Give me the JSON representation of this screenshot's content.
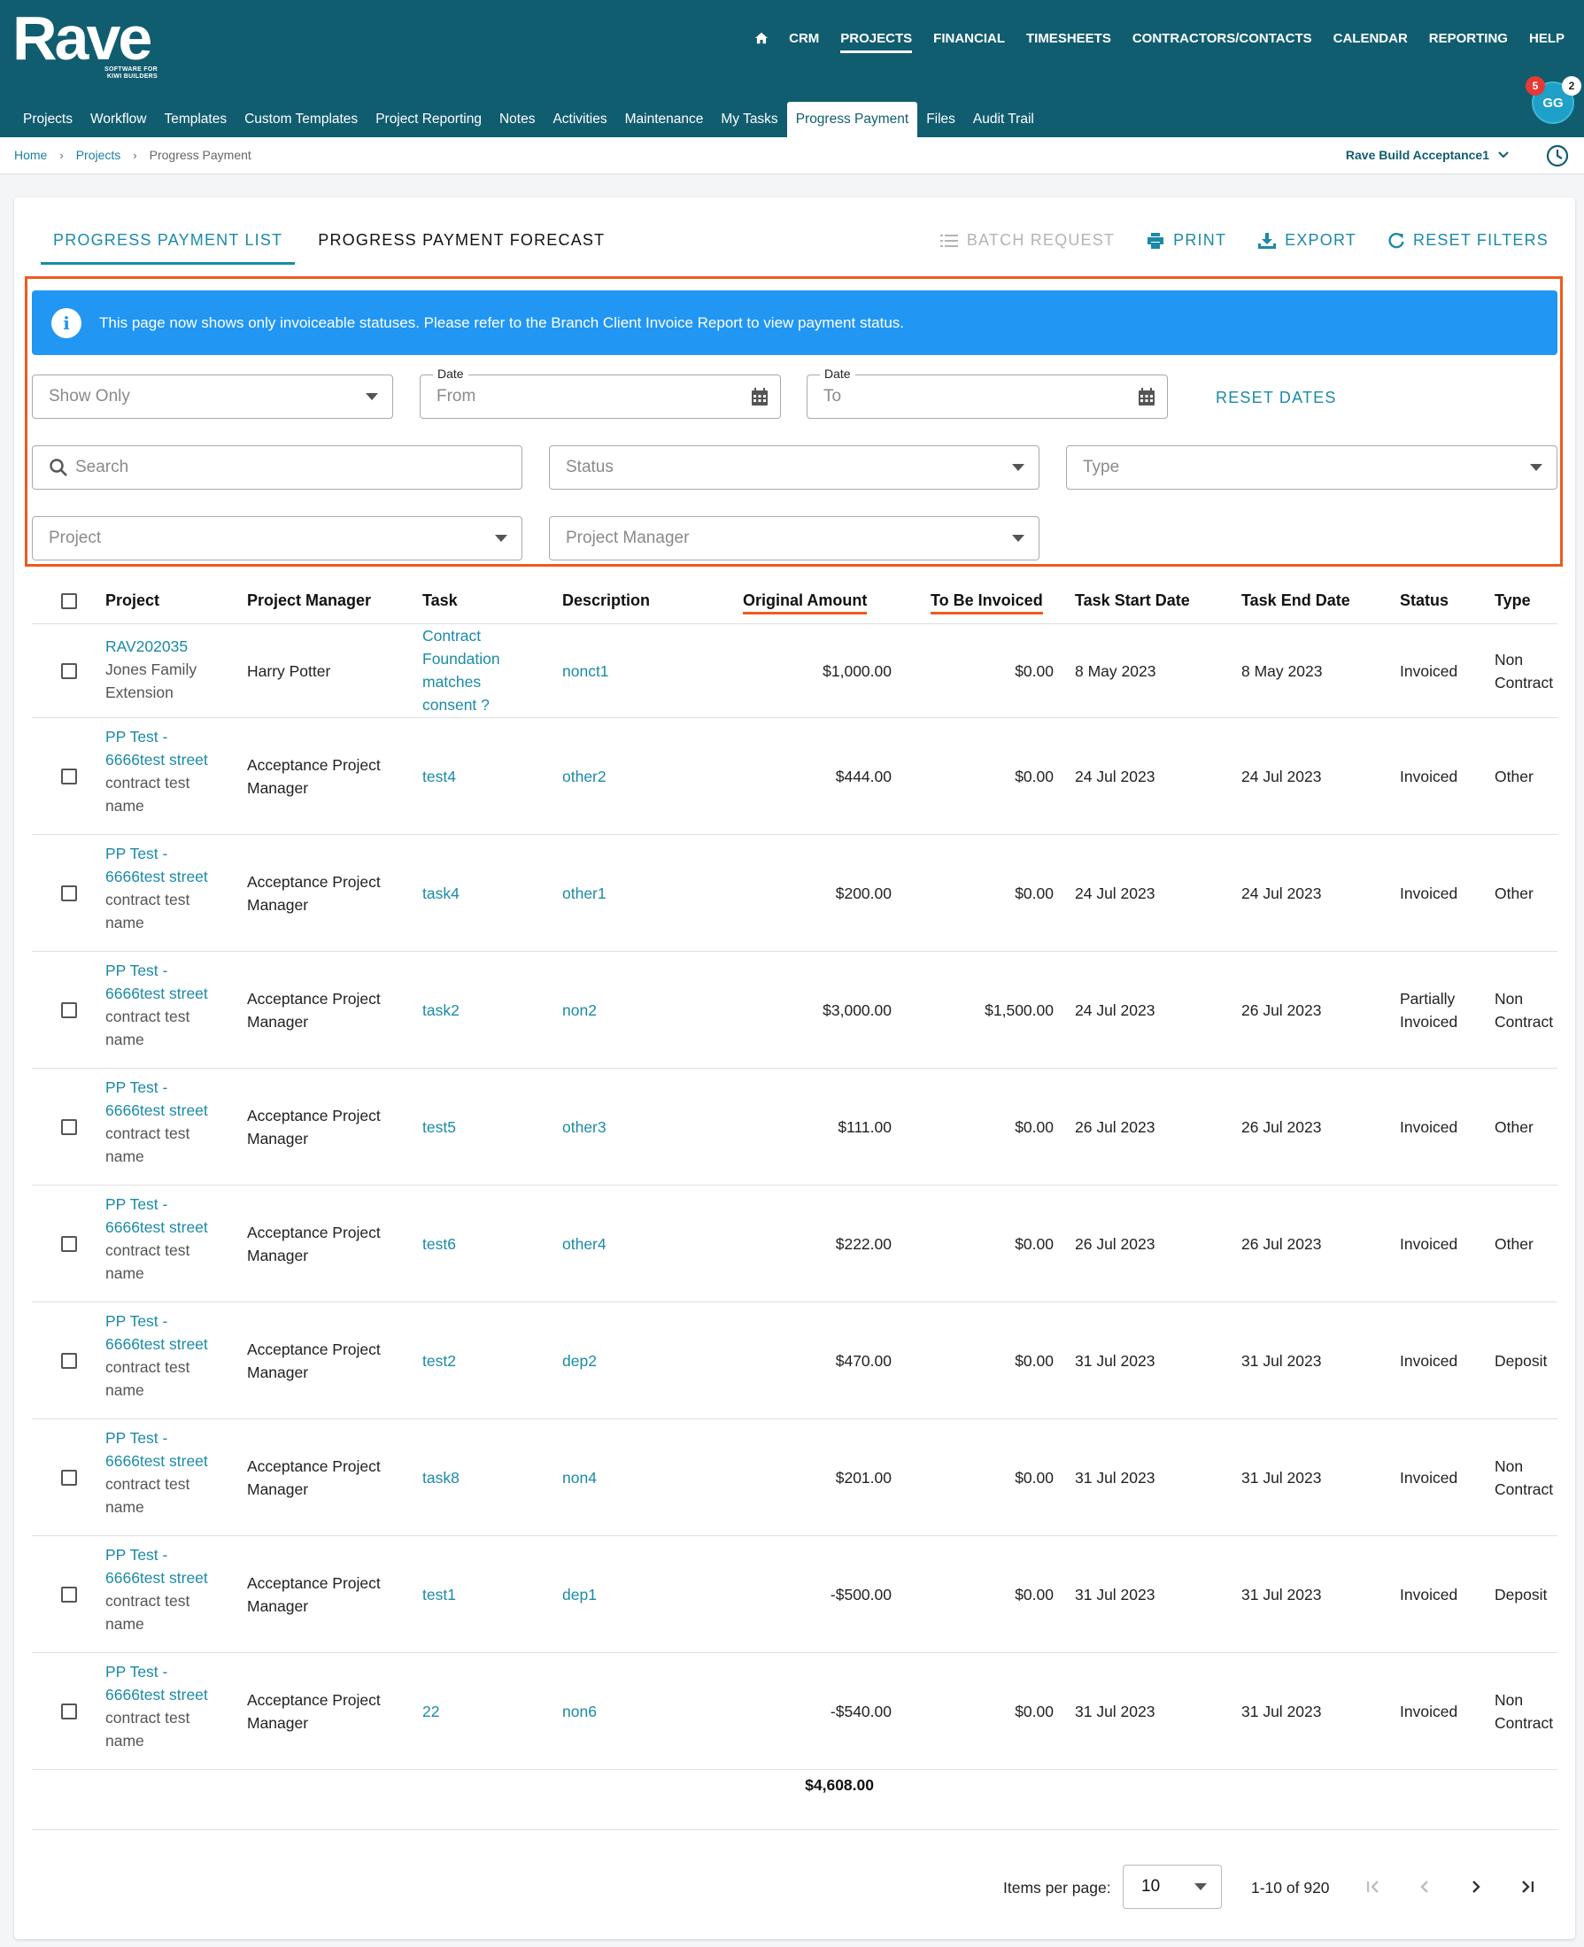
{
  "brand": {
    "name": "Rave",
    "tagline_line1": "SOFTWARE FOR",
    "tagline_line2": "KIWI BUILDERS"
  },
  "top_nav": [
    {
      "label": "CRM",
      "active": false
    },
    {
      "label": "PROJECTS",
      "active": true
    },
    {
      "label": "FINANCIAL",
      "active": false
    },
    {
      "label": "TIMESHEETS",
      "active": false
    },
    {
      "label": "CONTRACTORS/CONTACTS",
      "active": false
    },
    {
      "label": "CALENDAR",
      "active": false
    },
    {
      "label": "REPORTING",
      "active": false
    },
    {
      "label": "HELP",
      "active": false
    }
  ],
  "user": {
    "initials": "GG",
    "notifications": "5",
    "messages": "2"
  },
  "sub_nav": [
    {
      "label": "Projects"
    },
    {
      "label": "Workflow"
    },
    {
      "label": "Templates"
    },
    {
      "label": "Custom Templates"
    },
    {
      "label": "Project Reporting"
    },
    {
      "label": "Notes"
    },
    {
      "label": "Activities"
    },
    {
      "label": "Maintenance"
    },
    {
      "label": "My Tasks"
    },
    {
      "label": "Progress Payment",
      "active": true
    },
    {
      "label": "Files"
    },
    {
      "label": "Audit Trail"
    }
  ],
  "breadcrumb": {
    "home": "Home",
    "projects": "Projects",
    "current": "Progress Payment"
  },
  "branch": "Rave Build Acceptance1",
  "tabs": {
    "list": "PROGRESS PAYMENT LIST",
    "forecast": "PROGRESS PAYMENT FORECAST"
  },
  "actions": {
    "batch": "BATCH REQUEST",
    "print": "PRINT",
    "export": "EXPORT",
    "reset": "RESET FILTERS"
  },
  "info_message": "This page now shows only invoiceable statuses. Please refer to the Branch Client Invoice Report to view payment status.",
  "filters": {
    "show_only": "Show Only",
    "date_label": "Date",
    "from": "From",
    "to": "To",
    "reset_dates": "RESET DATES",
    "search": "Search",
    "status": "Status",
    "type": "Type",
    "project": "Project",
    "project_manager": "Project Manager"
  },
  "columns": {
    "project": "Project",
    "manager": "Project Manager",
    "task": "Task",
    "description": "Description",
    "original": "Original Amount",
    "to_invoice": "To Be Invoiced",
    "start": "Task Start Date",
    "end": "Task End Date",
    "status": "Status",
    "type": "Type"
  },
  "rows": [
    {
      "project_code": "RAV202035",
      "project_name": "Jones Family Extension",
      "manager": "Harry Potter",
      "task": "Contract Foundation matches consent ?",
      "description": "nonct1",
      "original": "$1,000.00",
      "to_invoice": "$0.00",
      "start": "8 May 2023",
      "end": "8 May 2023",
      "status": "Invoiced",
      "type": "Non Contract"
    },
    {
      "project_code": "PP Test - 6666test street",
      "project_name": "contract test name",
      "manager": "Acceptance Project Manager",
      "task": "test4",
      "description": "other2",
      "original": "$444.00",
      "to_invoice": "$0.00",
      "start": "24 Jul 2023",
      "end": "24 Jul 2023",
      "status": "Invoiced",
      "type": "Other"
    },
    {
      "project_code": "PP Test - 6666test street",
      "project_name": "contract test name",
      "manager": "Acceptance Project Manager",
      "task": "task4",
      "description": "other1",
      "original": "$200.00",
      "to_invoice": "$0.00",
      "start": "24 Jul 2023",
      "end": "24 Jul 2023",
      "status": "Invoiced",
      "type": "Other"
    },
    {
      "project_code": "PP Test - 6666test street",
      "project_name": "contract test name",
      "manager": "Acceptance Project Manager",
      "task": "task2",
      "description": "non2",
      "original": "$3,000.00",
      "to_invoice": "$1,500.00",
      "start": "24 Jul 2023",
      "end": "26 Jul 2023",
      "status": "Partially Invoiced",
      "type": "Non Contract"
    },
    {
      "project_code": "PP Test - 6666test street",
      "project_name": "contract test name",
      "manager": "Acceptance Project Manager",
      "task": "test5",
      "description": "other3",
      "original": "$111.00",
      "to_invoice": "$0.00",
      "start": "26 Jul 2023",
      "end": "26 Jul 2023",
      "status": "Invoiced",
      "type": "Other"
    },
    {
      "project_code": "PP Test - 6666test street",
      "project_name": "contract test name",
      "manager": "Acceptance Project Manager",
      "task": "test6",
      "description": "other4",
      "original": "$222.00",
      "to_invoice": "$0.00",
      "start": "26 Jul 2023",
      "end": "26 Jul 2023",
      "status": "Invoiced",
      "type": "Other"
    },
    {
      "project_code": "PP Test - 6666test street",
      "project_name": "contract test name",
      "manager": "Acceptance Project Manager",
      "task": "test2",
      "description": "dep2",
      "original": "$470.00",
      "to_invoice": "$0.00",
      "start": "31 Jul 2023",
      "end": "31 Jul 2023",
      "status": "Invoiced",
      "type": "Deposit"
    },
    {
      "project_code": "PP Test - 6666test street",
      "project_name": "contract test name",
      "manager": "Acceptance Project Manager",
      "task": "task8",
      "description": "non4",
      "original": "$201.00",
      "to_invoice": "$0.00",
      "start": "31 Jul 2023",
      "end": "31 Jul 2023",
      "status": "Invoiced",
      "type": "Non Contract"
    },
    {
      "project_code": "PP Test - 6666test street",
      "project_name": "contract test name",
      "manager": "Acceptance Project Manager",
      "task": "test1",
      "description": "dep1",
      "original": "-$500.00",
      "to_invoice": "$0.00",
      "start": "31 Jul 2023",
      "end": "31 Jul 2023",
      "status": "Invoiced",
      "type": "Deposit"
    },
    {
      "project_code": "PP Test - 6666test street",
      "project_name": "contract test name",
      "manager": "Acceptance Project Manager",
      "task": "22",
      "description": "non6",
      "original": "-$540.00",
      "to_invoice": "$0.00",
      "start": "31 Jul 2023",
      "end": "31 Jul 2023",
      "status": "Invoiced",
      "type": "Non Contract"
    }
  ],
  "total": "$4,608.00",
  "pagination": {
    "items_label": "Items per page:",
    "page_size": "10",
    "range": "1-10 of 920"
  },
  "colors": {
    "header": "#115d70",
    "accent": "#1a8aa8",
    "info": "#2196f3",
    "highlight": "#f05a1e"
  }
}
